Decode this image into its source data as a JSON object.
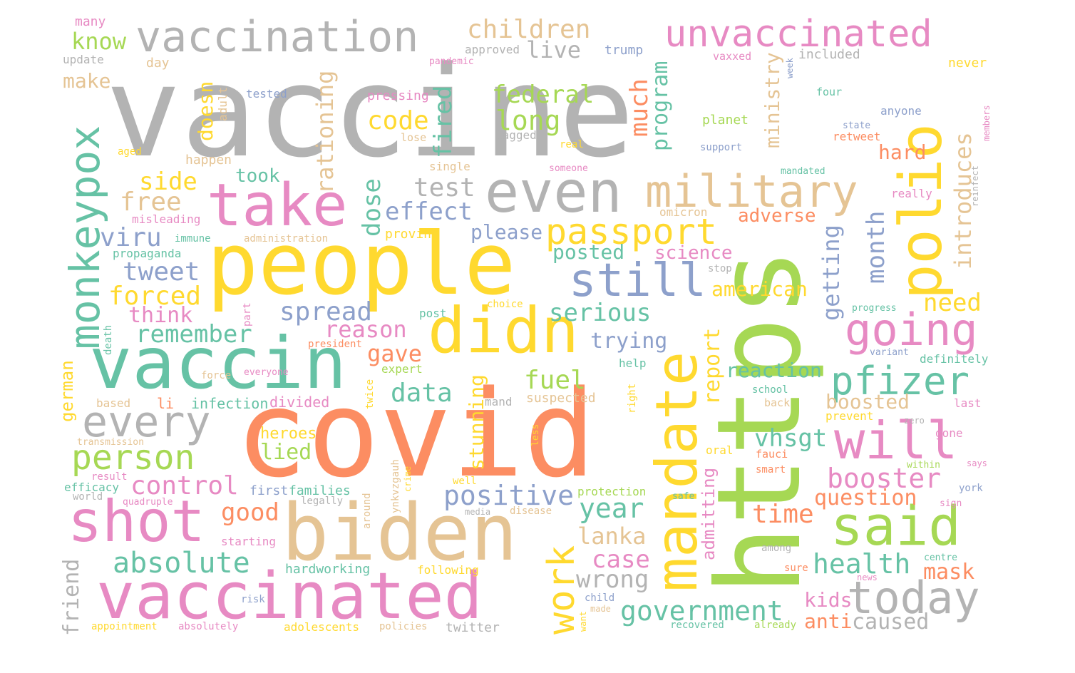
{
  "palette": {
    "gray": "#b3b3b3",
    "yellow": "#ffd92f",
    "orange": "#fc8d62",
    "green": "#a6d854",
    "teal": "#66c2a5",
    "pink": "#e78ac3",
    "tan": "#e5c494",
    "blue": "#8da0cb"
  },
  "words": [
    {
      "text": "vaccine",
      "color": "gray"
    },
    {
      "text": "covid",
      "color": "orange"
    },
    {
      "text": "https",
      "color": "green"
    },
    {
      "text": "people",
      "color": "yellow"
    },
    {
      "text": "vaccin",
      "color": "teal"
    },
    {
      "text": "biden",
      "color": "tan"
    },
    {
      "text": "vaccinated",
      "color": "pink"
    },
    {
      "text": "vaccination",
      "color": "gray"
    },
    {
      "text": "unvaccinated",
      "color": "pink"
    },
    {
      "text": "mandate",
      "color": "yellow"
    },
    {
      "text": "polio",
      "color": "yellow"
    },
    {
      "text": "even",
      "color": "gray"
    },
    {
      "text": "take",
      "color": "pink"
    },
    {
      "text": "military",
      "color": "tan"
    },
    {
      "text": "didn",
      "color": "yellow"
    },
    {
      "text": "shot",
      "color": "pink"
    },
    {
      "text": "will",
      "color": "pink"
    },
    {
      "text": "said",
      "color": "green"
    },
    {
      "text": "monkeypox",
      "color": "teal"
    },
    {
      "text": "passport",
      "color": "yellow"
    },
    {
      "text": "still",
      "color": "blue"
    },
    {
      "text": "going",
      "color": "pink"
    },
    {
      "text": "today",
      "color": "gray"
    },
    {
      "text": "every",
      "color": "gray"
    },
    {
      "text": "person",
      "color": "green"
    },
    {
      "text": "pfizer",
      "color": "teal"
    },
    {
      "text": "work",
      "color": "yellow"
    },
    {
      "text": "children",
      "color": "tan"
    },
    {
      "text": "absolute",
      "color": "teal"
    },
    {
      "text": "government",
      "color": "teal"
    },
    {
      "text": "booster",
      "color": "pink"
    },
    {
      "text": "control",
      "color": "pink"
    },
    {
      "text": "positive",
      "color": "blue"
    },
    {
      "text": "federal",
      "color": "green"
    },
    {
      "text": "long",
      "color": "green"
    },
    {
      "text": "code",
      "color": "yellow"
    },
    {
      "text": "test",
      "color": "gray"
    },
    {
      "text": "effect",
      "color": "blue"
    },
    {
      "text": "side",
      "color": "yellow"
    },
    {
      "text": "free",
      "color": "tan"
    },
    {
      "text": "viru",
      "color": "blue"
    },
    {
      "text": "tweet",
      "color": "blue"
    },
    {
      "text": "forced",
      "color": "yellow"
    },
    {
      "text": "think",
      "color": "pink"
    },
    {
      "text": "remember",
      "color": "teal"
    },
    {
      "text": "spread",
      "color": "blue"
    },
    {
      "text": "reason",
      "color": "pink"
    },
    {
      "text": "gave",
      "color": "orange"
    },
    {
      "text": "data",
      "color": "teal"
    },
    {
      "text": "fuel",
      "color": "green"
    },
    {
      "text": "serious",
      "color": "teal"
    },
    {
      "text": "trying",
      "color": "blue"
    },
    {
      "text": "posted",
      "color": "teal"
    },
    {
      "text": "science",
      "color": "pink"
    },
    {
      "text": "american",
      "color": "yellow"
    },
    {
      "text": "need",
      "color": "yellow"
    },
    {
      "text": "reaction",
      "color": "teal"
    },
    {
      "text": "boosted",
      "color": "tan"
    },
    {
      "text": "vhsgt",
      "color": "teal"
    },
    {
      "text": "question",
      "color": "orange"
    },
    {
      "text": "time",
      "color": "orange"
    },
    {
      "text": "health",
      "color": "teal"
    },
    {
      "text": "mask",
      "color": "orange"
    },
    {
      "text": "caused",
      "color": "gray"
    },
    {
      "text": "anti",
      "color": "orange"
    },
    {
      "text": "kids",
      "color": "pink"
    },
    {
      "text": "case",
      "color": "pink"
    },
    {
      "text": "wrong",
      "color": "gray"
    },
    {
      "text": "lanka",
      "color": "tan"
    },
    {
      "text": "year",
      "color": "teal"
    },
    {
      "text": "good",
      "color": "orange"
    },
    {
      "text": "lied",
      "color": "green"
    },
    {
      "text": "heroes",
      "color": "yellow"
    },
    {
      "text": "know",
      "color": "green"
    },
    {
      "text": "make",
      "color": "tan"
    },
    {
      "text": "live",
      "color": "gray"
    },
    {
      "text": "took",
      "color": "teal"
    },
    {
      "text": "please",
      "color": "blue"
    },
    {
      "text": "adverse",
      "color": "orange"
    },
    {
      "text": "hard",
      "color": "orange"
    },
    {
      "text": "fired",
      "color": "teal"
    },
    {
      "text": "rationing",
      "color": "tan"
    },
    {
      "text": "dose",
      "color": "teal"
    },
    {
      "text": "much",
      "color": "orange"
    },
    {
      "text": "program",
      "color": "teal"
    },
    {
      "text": "ministry",
      "color": "tan"
    },
    {
      "text": "getting",
      "color": "blue"
    },
    {
      "text": "month",
      "color": "blue"
    },
    {
      "text": "introduces",
      "color": "tan"
    },
    {
      "text": "report",
      "color": "yellow"
    },
    {
      "text": "stunning",
      "color": "yellow"
    },
    {
      "text": "doesn",
      "color": "yellow"
    },
    {
      "text": "admitting",
      "color": "pink"
    },
    {
      "text": "german",
      "color": "yellow"
    },
    {
      "text": "friend",
      "color": "gray"
    },
    {
      "text": "trump",
      "color": "blue"
    },
    {
      "text": "many",
      "color": "pink"
    },
    {
      "text": "update",
      "color": "gray"
    },
    {
      "text": "day",
      "color": "tan"
    },
    {
      "text": "approved",
      "color": "gray"
    },
    {
      "text": "pandemic",
      "color": "pink"
    },
    {
      "text": "vaxxed",
      "color": "pink"
    },
    {
      "text": "week",
      "color": "blue"
    },
    {
      "text": "included",
      "color": "gray"
    },
    {
      "text": "never",
      "color": "yellow"
    },
    {
      "text": "tested",
      "color": "blue"
    },
    {
      "text": "adult",
      "color": "tan"
    },
    {
      "text": "pressing",
      "color": "pink"
    },
    {
      "text": "lose",
      "color": "tan"
    },
    {
      "text": "tagged",
      "color": "gray"
    },
    {
      "text": "planet",
      "color": "green"
    },
    {
      "text": "real",
      "color": "yellow"
    },
    {
      "text": "four",
      "color": "teal"
    },
    {
      "text": "anyone",
      "color": "blue"
    },
    {
      "text": "state",
      "color": "blue"
    },
    {
      "text": "retweet",
      "color": "orange"
    },
    {
      "text": "members",
      "color": "pink"
    },
    {
      "text": "support",
      "color": "blue"
    },
    {
      "text": "aged",
      "color": "yellow"
    },
    {
      "text": "happen",
      "color": "tan"
    },
    {
      "text": "single",
      "color": "tan"
    },
    {
      "text": "someone",
      "color": "pink"
    },
    {
      "text": "mandated",
      "color": "teal"
    },
    {
      "text": "really",
      "color": "pink"
    },
    {
      "text": "reinfect",
      "color": "gray"
    },
    {
      "text": "omicron",
      "color": "tan"
    },
    {
      "text": "misleading",
      "color": "pink"
    },
    {
      "text": "immune",
      "color": "teal"
    },
    {
      "text": "administration",
      "color": "tan"
    },
    {
      "text": "proving",
      "color": "yellow"
    },
    {
      "text": "propaganda",
      "color": "teal"
    },
    {
      "text": "stop",
      "color": "gray"
    },
    {
      "text": "post",
      "color": "teal"
    },
    {
      "text": "choice",
      "color": "yellow"
    },
    {
      "text": "progress",
      "color": "teal"
    },
    {
      "text": "part",
      "color": "pink"
    },
    {
      "text": "death",
      "color": "teal"
    },
    {
      "text": "president",
      "color": "orange"
    },
    {
      "text": "variant",
      "color": "blue"
    },
    {
      "text": "definitely",
      "color": "teal"
    },
    {
      "text": "help",
      "color": "teal"
    },
    {
      "text": "force",
      "color": "tan"
    },
    {
      "text": "everyone",
      "color": "pink"
    },
    {
      "text": "expert",
      "color": "green"
    },
    {
      "text": "twice",
      "color": "yellow"
    },
    {
      "text": "school",
      "color": "teal"
    },
    {
      "text": "back",
      "color": "tan"
    },
    {
      "text": "last",
      "color": "pink"
    },
    {
      "text": "based",
      "color": "tan"
    },
    {
      "text": "li",
      "color": "orange"
    },
    {
      "text": "infection",
      "color": "teal"
    },
    {
      "text": "divided",
      "color": "pink"
    },
    {
      "text": "mand",
      "color": "gray"
    },
    {
      "text": "suspected",
      "color": "tan"
    },
    {
      "text": "right",
      "color": "yellow"
    },
    {
      "text": "prevent",
      "color": "yellow"
    },
    {
      "text": "zero",
      "color": "gray"
    },
    {
      "text": "gone",
      "color": "pink"
    },
    {
      "text": "transmission",
      "color": "tan"
    },
    {
      "text": "less",
      "color": "yellow"
    },
    {
      "text": "oral",
      "color": "yellow"
    },
    {
      "text": "fauci",
      "color": "orange"
    },
    {
      "text": "smart",
      "color": "orange"
    },
    {
      "text": "within",
      "color": "green"
    },
    {
      "text": "says",
      "color": "pink"
    },
    {
      "text": "result",
      "color": "pink"
    },
    {
      "text": "efficacy",
      "color": "teal"
    },
    {
      "text": "world",
      "color": "gray"
    },
    {
      "text": "first",
      "color": "blue"
    },
    {
      "text": "families",
      "color": "teal"
    },
    {
      "text": "quadruple",
      "color": "pink"
    },
    {
      "text": "legally",
      "color": "gray"
    },
    {
      "text": "ynkvzgauh",
      "color": "tan"
    },
    {
      "text": "crime",
      "color": "yellow"
    },
    {
      "text": "around",
      "color": "tan"
    },
    {
      "text": "well",
      "color": "yellow"
    },
    {
      "text": "media",
      "color": "gray"
    },
    {
      "text": "disease",
      "color": "tan"
    },
    {
      "text": "protection",
      "color": "green"
    },
    {
      "text": "safe",
      "color": "teal"
    },
    {
      "text": "york",
      "color": "blue"
    },
    {
      "text": "sign",
      "color": "pink"
    },
    {
      "text": "starting",
      "color": "pink"
    },
    {
      "text": "among",
      "color": "gray"
    },
    {
      "text": "centre",
      "color": "teal"
    },
    {
      "text": "hardworking",
      "color": "teal"
    },
    {
      "text": "following",
      "color": "yellow"
    },
    {
      "text": "sure",
      "color": "orange"
    },
    {
      "text": "news",
      "color": "pink"
    },
    {
      "text": "risk",
      "color": "blue"
    },
    {
      "text": "child",
      "color": "blue"
    },
    {
      "text": "made",
      "color": "tan"
    },
    {
      "text": "want",
      "color": "yellow"
    },
    {
      "text": "appointment",
      "color": "yellow"
    },
    {
      "text": "absolutely",
      "color": "pink"
    },
    {
      "text": "adolescents",
      "color": "yellow"
    },
    {
      "text": "policies",
      "color": "tan"
    },
    {
      "text": "twitter",
      "color": "gray"
    },
    {
      "text": "recovered",
      "color": "teal"
    },
    {
      "text": "already",
      "color": "green"
    }
  ]
}
